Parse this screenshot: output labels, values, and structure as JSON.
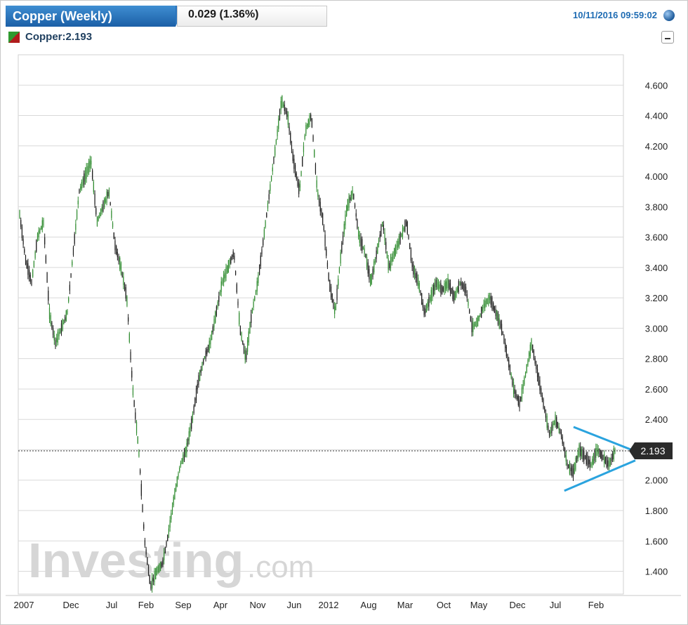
{
  "header": {
    "tab_title": "Copper (Weekly)",
    "change": "0.029 (1.36%)",
    "timestamp": "10/11/2016 09:59:02"
  },
  "legend": {
    "series_label": "Copper:2.193"
  },
  "watermark": {
    "brand": "Investing",
    "suffix": ".com"
  },
  "colors": {
    "up": "#2e8b2e",
    "down": "#1a1a1a",
    "trendline": "#2aa3de",
    "tab": "#2a74bd"
  },
  "chart_data": {
    "type": "candlestick",
    "title": "Copper (Weekly)",
    "ylim": [
      1.25,
      4.8
    ],
    "y_ticks": [
      "1.400",
      "1.600",
      "1.800",
      "2.000",
      "2.200",
      "2.400",
      "2.600",
      "2.800",
      "3.000",
      "3.200",
      "3.400",
      "3.600",
      "3.800",
      "4.000",
      "4.200",
      "4.400",
      "4.600"
    ],
    "x_ticks": [
      "2007",
      "Dec",
      "Jul",
      "Feb",
      "Sep",
      "Apr",
      "Nov",
      "Jun",
      "2012",
      "Aug",
      "Mar",
      "Oct",
      "May",
      "Dec",
      "Jul",
      "Feb"
    ],
    "last_price": "2.193",
    "reference_line": 2.193,
    "approx_close_path": [
      [
        0,
        3.75
      ],
      [
        2,
        3.45
      ],
      [
        4,
        3.3
      ],
      [
        6,
        3.6
      ],
      [
        8,
        3.7
      ],
      [
        10,
        3.1
      ],
      [
        12,
        2.9
      ],
      [
        14,
        3.0
      ],
      [
        16,
        3.1
      ],
      [
        18,
        3.5
      ],
      [
        20,
        3.9
      ],
      [
        22,
        4.0
      ],
      [
        24,
        4.1
      ],
      [
        26,
        3.7
      ],
      [
        28,
        3.8
      ],
      [
        30,
        3.9
      ],
      [
        32,
        3.55
      ],
      [
        34,
        3.4
      ],
      [
        36,
        3.2
      ],
      [
        38,
        2.6
      ],
      [
        40,
        2.2
      ],
      [
        42,
        1.6
      ],
      [
        44,
        1.3
      ],
      [
        46,
        1.4
      ],
      [
        48,
        1.45
      ],
      [
        50,
        1.65
      ],
      [
        52,
        1.9
      ],
      [
        54,
        2.1
      ],
      [
        56,
        2.2
      ],
      [
        58,
        2.4
      ],
      [
        60,
        2.65
      ],
      [
        62,
        2.8
      ],
      [
        64,
        2.9
      ],
      [
        66,
        3.1
      ],
      [
        68,
        3.3
      ],
      [
        70,
        3.4
      ],
      [
        72,
        3.5
      ],
      [
        74,
        3.0
      ],
      [
        76,
        2.8
      ],
      [
        78,
        3.1
      ],
      [
        80,
        3.3
      ],
      [
        82,
        3.6
      ],
      [
        84,
        3.9
      ],
      [
        86,
        4.2
      ],
      [
        88,
        4.5
      ],
      [
        90,
        4.4
      ],
      [
        92,
        4.1
      ],
      [
        94,
        3.9
      ],
      [
        96,
        4.3
      ],
      [
        98,
        4.4
      ],
      [
        100,
        3.9
      ],
      [
        102,
        3.7
      ],
      [
        104,
        3.3
      ],
      [
        106,
        3.1
      ],
      [
        108,
        3.5
      ],
      [
        110,
        3.8
      ],
      [
        112,
        3.9
      ],
      [
        114,
        3.6
      ],
      [
        116,
        3.5
      ],
      [
        118,
        3.3
      ],
      [
        120,
        3.5
      ],
      [
        122,
        3.7
      ],
      [
        124,
        3.4
      ],
      [
        126,
        3.5
      ],
      [
        128,
        3.6
      ],
      [
        130,
        3.7
      ],
      [
        132,
        3.4
      ],
      [
        134,
        3.3
      ],
      [
        136,
        3.1
      ],
      [
        138,
        3.2
      ],
      [
        140,
        3.3
      ],
      [
        142,
        3.25
      ],
      [
        144,
        3.3
      ],
      [
        146,
        3.2
      ],
      [
        148,
        3.3
      ],
      [
        150,
        3.25
      ],
      [
        152,
        3.0
      ],
      [
        154,
        3.05
      ],
      [
        156,
        3.15
      ],
      [
        158,
        3.2
      ],
      [
        160,
        3.1
      ],
      [
        162,
        3.0
      ],
      [
        164,
        2.8
      ],
      [
        166,
        2.6
      ],
      [
        168,
        2.5
      ],
      [
        170,
        2.7
      ],
      [
        172,
        2.9
      ],
      [
        174,
        2.7
      ],
      [
        176,
        2.5
      ],
      [
        178,
        2.3
      ],
      [
        180,
        2.4
      ],
      [
        182,
        2.3
      ],
      [
        184,
        2.1
      ],
      [
        186,
        2.05
      ],
      [
        188,
        2.2
      ],
      [
        190,
        2.15
      ],
      [
        192,
        2.1
      ],
      [
        194,
        2.2
      ],
      [
        196,
        2.15
      ],
      [
        198,
        2.1
      ],
      [
        200,
        2.193
      ]
    ],
    "trendlines": [
      {
        "name": "upper",
        "from": [
          0.905,
          2.35
        ],
        "to": [
          1.0,
          2.19
        ]
      },
      {
        "name": "lower",
        "from": [
          0.89,
          1.93
        ],
        "to": [
          1.0,
          2.13
        ]
      }
    ]
  }
}
